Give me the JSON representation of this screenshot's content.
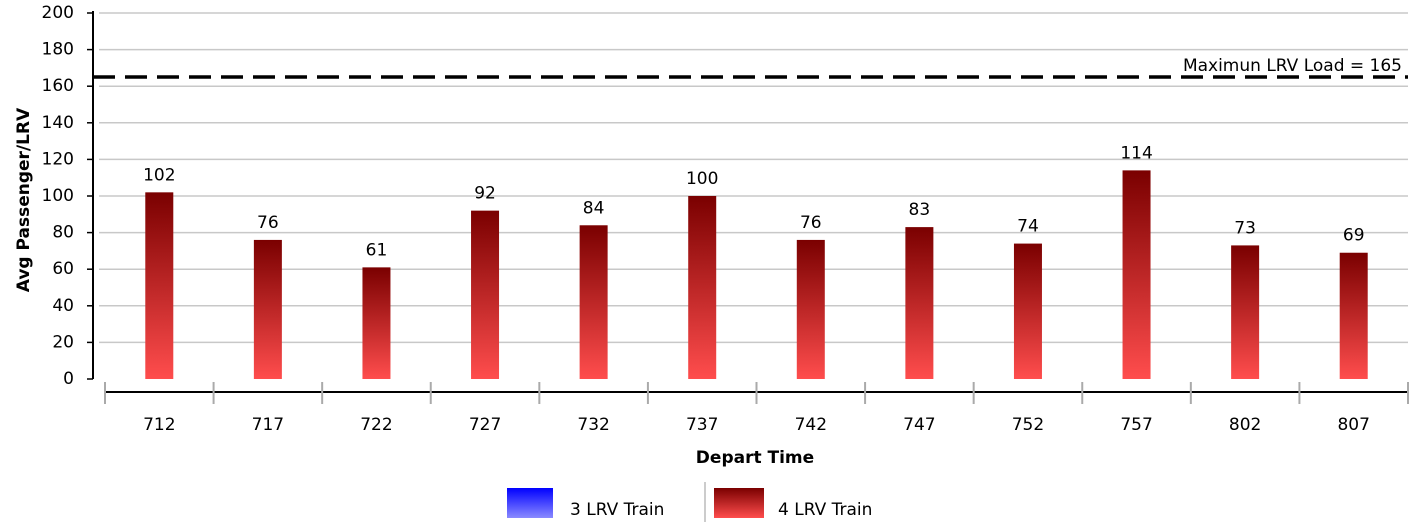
{
  "chart_data": {
    "type": "bar",
    "x_label": "Depart Time",
    "y_label": "Avg Passenger/LRV",
    "categories": [
      "712",
      "717",
      "722",
      "727",
      "732",
      "737",
      "742",
      "747",
      "752",
      "757",
      "802",
      "807"
    ],
    "series": [
      {
        "name": "3 LRV Train",
        "color": [
          "#0000ff",
          "#8a8aff"
        ],
        "values": [
          null,
          null,
          null,
          null,
          null,
          null,
          null,
          null,
          null,
          null,
          null,
          null
        ]
      },
      {
        "name": "4 LRV Train",
        "color": [
          "#7a0000",
          "#ff4d4d"
        ],
        "values": [
          102,
          76,
          61,
          92,
          84,
          100,
          76,
          83,
          74,
          114,
          73,
          69
        ]
      }
    ],
    "reference_line": {
      "value": 165,
      "label": "Maximun LRV Load = 165"
    },
    "ylim": [
      0,
      200
    ],
    "yticks": [
      0,
      20,
      40,
      60,
      80,
      100,
      120,
      140,
      160,
      180,
      200
    ],
    "grid": true,
    "legend": "bottom"
  }
}
